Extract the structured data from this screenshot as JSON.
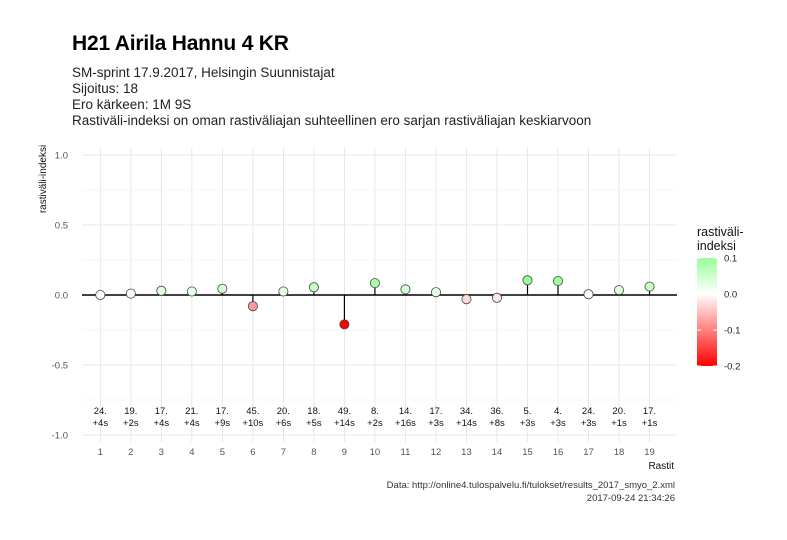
{
  "header": {
    "title": "H21 Airila Hannu 4 KR",
    "subtitle_lines": [
      "SM-sprint 17.9.2017, Helsingin Suunnistajat",
      "Sijoitus: 18",
      "Ero kärkeen: 1M 9S",
      "Rastiväli-indeksi on oman rastiväliajan suhteellinen ero sarjan rastiväliajan keskiarvoon"
    ]
  },
  "caption": {
    "source": "Data: http://online4.tulospalvelu.fi/tulokset/results_2017_smyo_2.xml",
    "timestamp": "2017-09-24 21:34:26"
  },
  "chart_data": {
    "type": "scatter",
    "style": "lollipop",
    "x": [
      1,
      2,
      3,
      4,
      5,
      6,
      7,
      8,
      9,
      10,
      11,
      12,
      13,
      14,
      15,
      16,
      17,
      18,
      19
    ],
    "values": [
      0.0,
      0.01,
      0.03,
      0.025,
      0.045,
      -0.08,
      0.025,
      0.055,
      -0.21,
      0.085,
      0.04,
      0.02,
      -0.03,
      -0.02,
      0.105,
      0.1,
      0.005,
      0.035,
      0.06
    ],
    "leg_ranks": [
      "24.",
      "19.",
      "17.",
      "21.",
      "17.",
      "45.",
      "20.",
      "18.",
      "49.",
      "8.",
      "14.",
      "17.",
      "34.",
      "36.",
      "5.",
      "4.",
      "24.",
      "20.",
      "17."
    ],
    "leg_diffs": [
      "+4s",
      "+2s",
      "+4s",
      "+4s",
      "+9s",
      "+10s",
      "+6s",
      "+5s",
      "+14s",
      "+2s",
      "+16s",
      "+3s",
      "+14s",
      "+8s",
      "+3s",
      "+3s",
      "+3s",
      "+1s",
      "+1s"
    ],
    "xlabel": "Rastit",
    "ylabel": "rastiväli-indeksi",
    "yticks": [
      1.0,
      0.5,
      0.0,
      -0.5,
      -1.0
    ],
    "ytick_labels": [
      "1.0",
      "0.5",
      "0.0",
      "-0.5",
      "-1.0"
    ],
    "ylim": [
      -1.05,
      1.05
    ],
    "xlim": [
      0.4,
      19.9
    ],
    "grid": true,
    "legend": {
      "title": "rastiväli-\nindeksi",
      "placement": "right",
      "range": [
        -0.2,
        0.1
      ],
      "ticks": [
        0.1,
        0.0,
        -0.1,
        -0.2
      ],
      "tick_labels": [
        "0.1",
        "0.0",
        "-0.1",
        "-0.2"
      ],
      "colors": {
        "low": "#ff0000",
        "mid": "#ffffff",
        "high": "#99ff99"
      }
    }
  }
}
